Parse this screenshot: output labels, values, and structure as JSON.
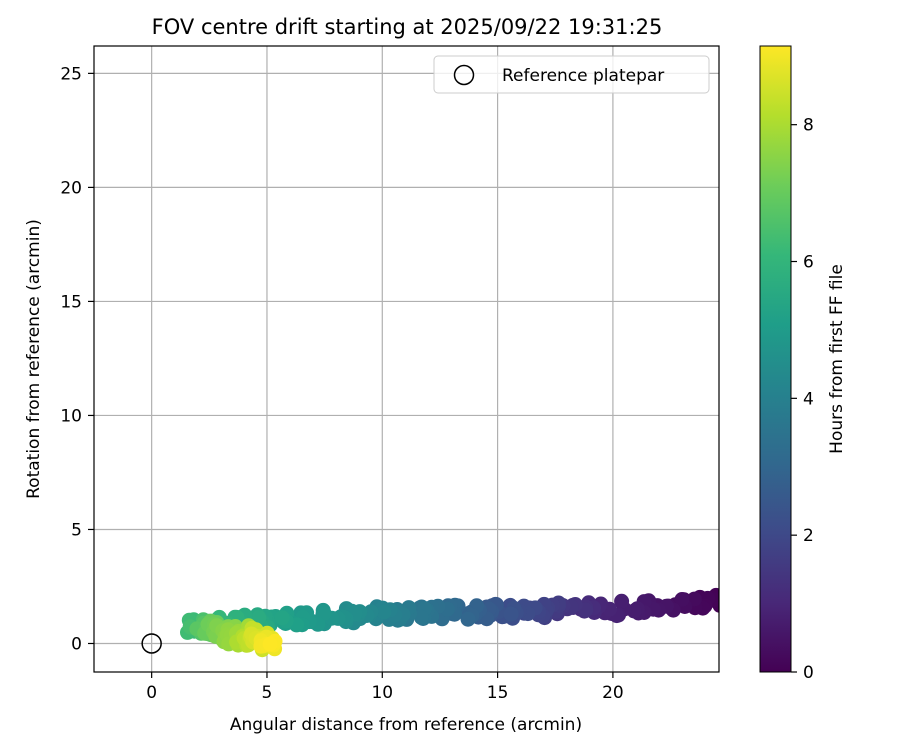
{
  "chart_data": {
    "type": "scatter",
    "title": "FOV centre drift starting at 2025/09/22 19:31:25",
    "xlabel": "Angular distance from reference (arcmin)",
    "ylabel": "Rotation from reference (arcmin)",
    "xlim": [
      -2.5,
      24.6
    ],
    "ylim": [
      -1.25,
      26.2
    ],
    "x_ticks": [
      0,
      5,
      10,
      15,
      20
    ],
    "y_ticks": [
      0,
      5,
      10,
      15,
      20,
      25
    ],
    "grid": true,
    "legend": {
      "position": "top-right",
      "entries": [
        "Reference platepar"
      ]
    },
    "reference_point": {
      "x": 0,
      "y": 0,
      "label": "Reference platepar"
    },
    "colorbar": {
      "label": "Hours from first FF file",
      "range": [
        0,
        9.15
      ],
      "ticks": [
        0,
        2,
        4,
        6,
        8
      ],
      "colormap": "viridis"
    },
    "trend_segments": [
      {
        "hours": [
          0.0,
          1.0
        ],
        "x": [
          24.5,
          19.3
        ],
        "y": [
          1.8,
          1.5
        ]
      },
      {
        "hours": [
          1.0,
          2.5
        ],
        "x": [
          19.3,
          14.8
        ],
        "y": [
          1.5,
          1.4
        ]
      },
      {
        "hours": [
          2.5,
          4.0
        ],
        "x": [
          14.8,
          10.3
        ],
        "y": [
          1.4,
          1.3
        ]
      },
      {
        "hours": [
          4.0,
          5.0
        ],
        "x": [
          10.3,
          6.5
        ],
        "y": [
          1.3,
          1.1
        ]
      },
      {
        "hours": [
          5.0,
          6.3
        ],
        "x": [
          6.5,
          1.8
        ],
        "y": [
          1.1,
          0.8
        ]
      },
      {
        "hours": [
          6.3,
          7.5
        ],
        "x": [
          1.8,
          3.3
        ],
        "y": [
          0.8,
          0.6
        ]
      },
      {
        "hours": [
          7.5,
          9.15
        ],
        "x": [
          3.3,
          5.3
        ],
        "y": [
          0.6,
          0.25
        ]
      }
    ],
    "n_points": 330,
    "y_spread": 0.32
  }
}
